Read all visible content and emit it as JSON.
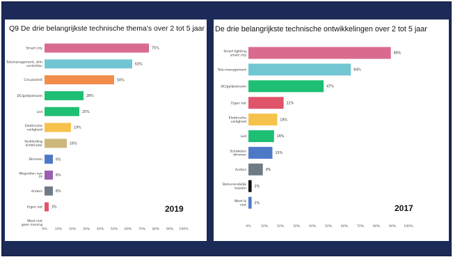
{
  "chart_data": [
    {
      "type": "bar",
      "orientation": "horizontal",
      "title": "Q9 De drie belangrijkste technische thema's over 2 tot 5 jaar",
      "year_label": "2019",
      "categories": [
        "Smart city",
        "Telemanagement, slim verlichten",
        "Circulariteit",
        "DC/gelijkstroom",
        "Led",
        "Elektrische veiligheid",
        "Verblinding lichthinder",
        "Dimmen",
        "Wegvallen van TF",
        "Anders",
        "Eigen net",
        "Weet niet geen mening"
      ],
      "values": [
        75,
        63,
        50,
        28,
        25,
        19,
        16,
        6,
        6,
        6,
        3,
        null
      ],
      "value_labels": [
        "75%",
        "63%",
        "50%",
        "28%",
        "25%",
        "19%",
        "16%",
        "6%",
        "6%",
        "6%",
        "3%",
        ""
      ],
      "colors": [
        "#d96b8e",
        "#72c6d1",
        "#f28c4b",
        "#1fbf73",
        "#1fbf73",
        "#f6c24c",
        "#cdb77b",
        "#4e79c6",
        "#9a5fae",
        "#707a86",
        "#e0546a",
        "#cccccc"
      ],
      "xlim": [
        0,
        100
      ],
      "xticks": [
        "0%",
        "10%",
        "20%",
        "30%",
        "40%",
        "50%",
        "60%",
        "70%",
        "80%",
        "90%",
        "100%"
      ],
      "grid": false
    },
    {
      "type": "bar",
      "orientation": "horizontal",
      "title": "De drie belangrijkste technische ontwikkelingen over 2 tot 5 jaar",
      "year_label": "2017",
      "categories": [
        "Smart lighting smart city",
        "Tele-management",
        "DC/gelijkstroom",
        "Eigen net",
        "Elektrische veiligheid",
        "Led",
        "Schakelen dimmen",
        "Anders",
        "Botsvriendelijk masten",
        "Weet ik niet"
      ],
      "values": [
        89,
        64,
        47,
        22,
        18,
        16,
        15,
        9,
        2,
        2
      ],
      "value_labels": [
        "89%",
        "64%",
        "47%",
        "22%",
        "18%",
        "16%",
        "15%",
        "9%",
        "2%",
        "2%"
      ],
      "colors": [
        "#d96b8e",
        "#72c6d1",
        "#1fbf73",
        "#e0546a",
        "#f6c24c",
        "#1fbf73",
        "#4e79c6",
        "#707a86",
        "#111111",
        "#4e79c6"
      ],
      "xlim": [
        0,
        100
      ],
      "xticks": [
        "0%",
        "10%",
        "20%",
        "30%",
        "40%",
        "50%",
        "60%",
        "70%",
        "80%",
        "90%",
        "100%"
      ],
      "grid": false
    }
  ]
}
